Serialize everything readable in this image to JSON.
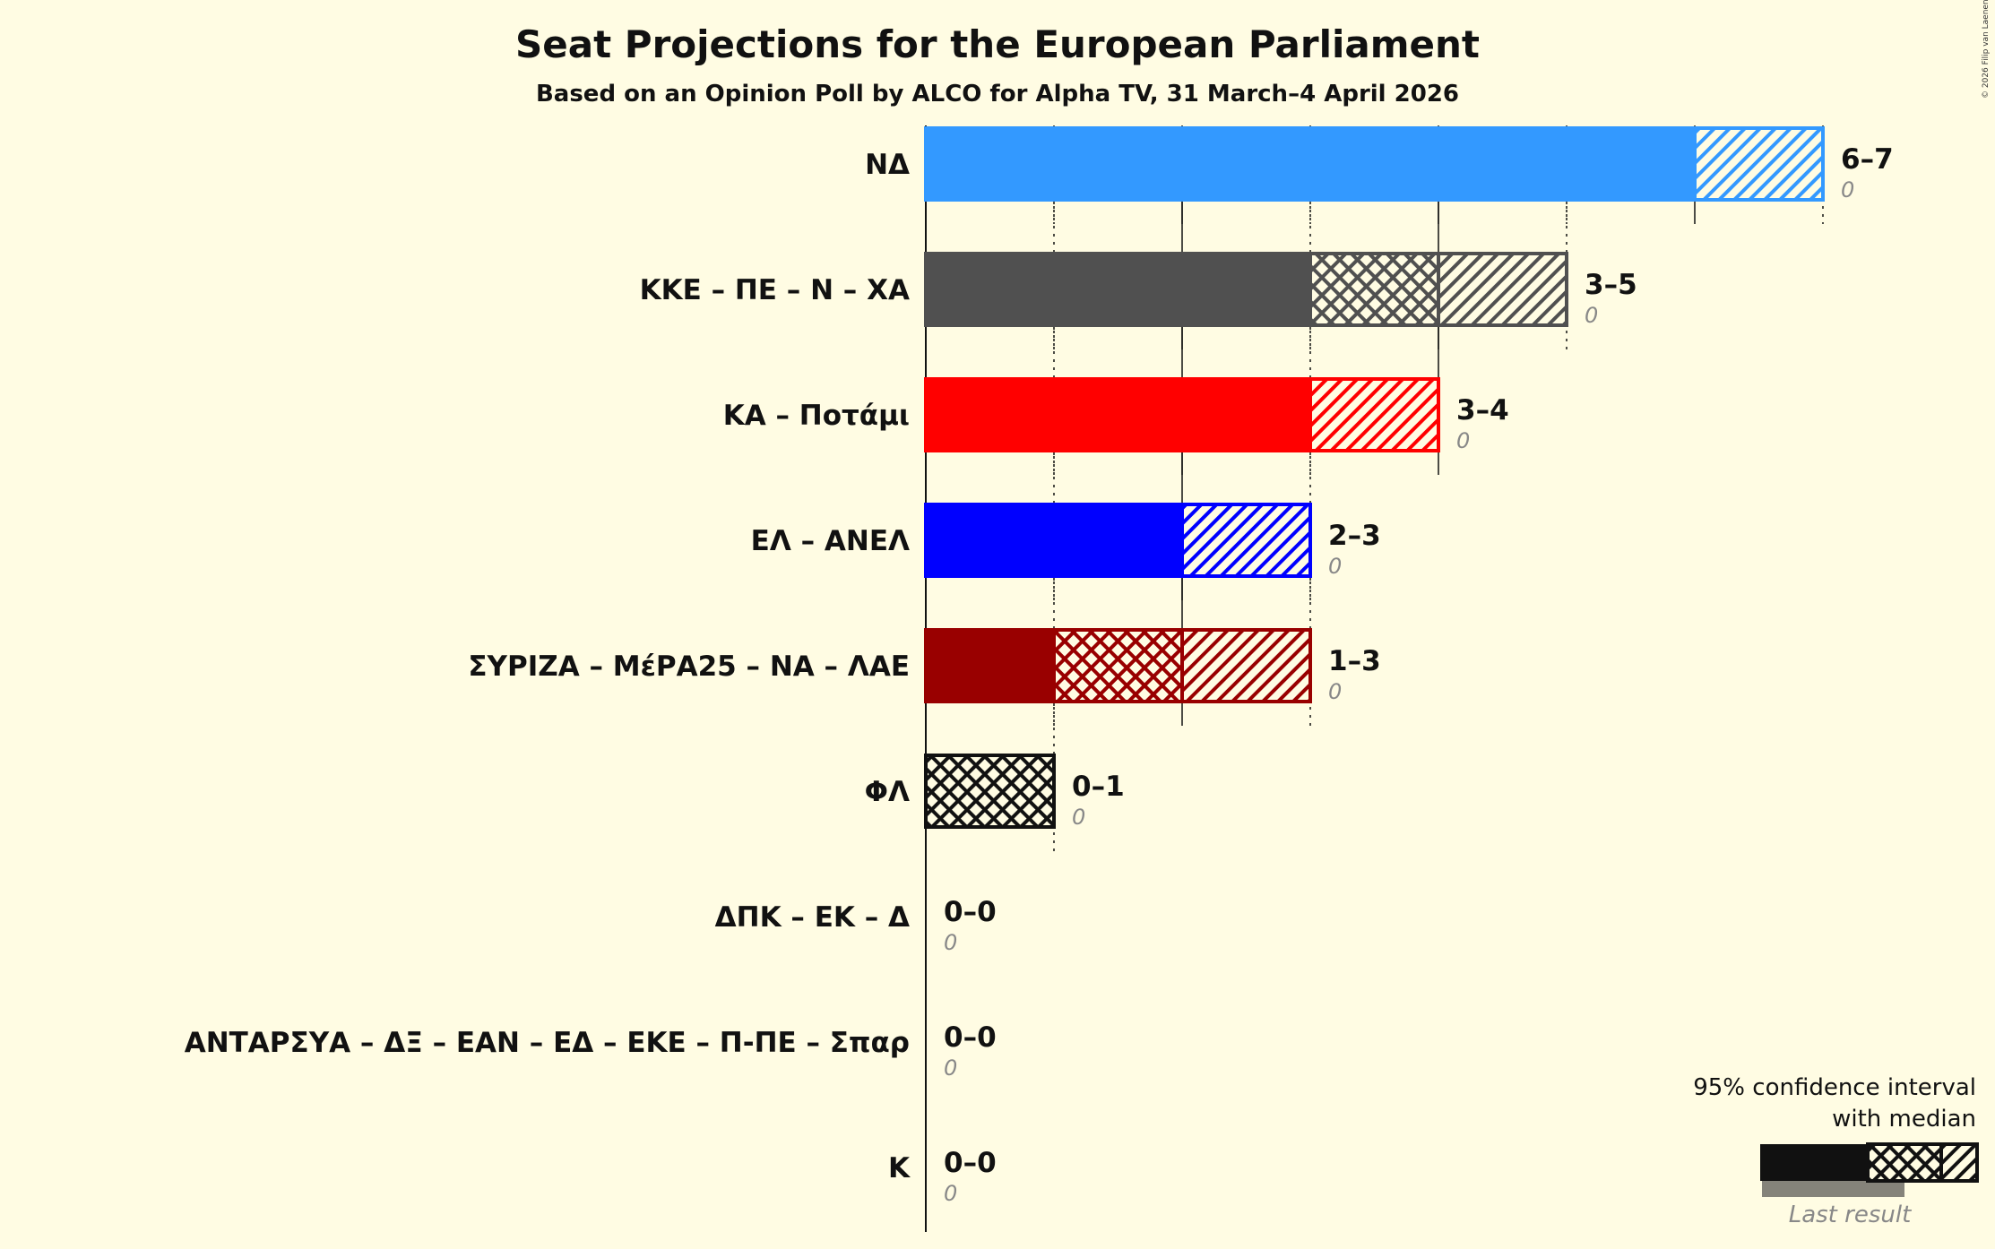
{
  "chart_data": {
    "type": "bar",
    "title": "Seat Projections for the European Parliament",
    "subtitle": "Based on an Opinion Poll by ALCO for Alpha TV, 31 March–4 April 2026",
    "xlabel": "",
    "ylabel": "",
    "xlim": [
      0,
      7
    ],
    "grid": true,
    "categories": [
      "ΝΔ",
      "ΚΚΕ – ΠΕ – Ν – ΧΑ",
      "ΚΑ – Ποτάμι",
      "ΕΛ – ΑΝΕΛ",
      "ΣΥΡΙΖΑ – ΜέΡΑ25 – ΝΑ – ΛΑΕ",
      "ΦΛ",
      "ΔΠΚ – ΕΚ – Δ",
      "ΑΝΤΑΡΣΥΑ – ΔΞ – ΕΑΝ – ΕΔ – ΕΚΕ – Π-ΠΕ – Σπαρ",
      "Κ"
    ],
    "series": [
      {
        "name": "lower",
        "values": [
          6,
          3,
          3,
          2,
          1,
          0,
          0,
          0,
          0
        ]
      },
      {
        "name": "median",
        "values": [
          6,
          4,
          3,
          2,
          2,
          1,
          0,
          0,
          0
        ]
      },
      {
        "name": "upper",
        "values": [
          7,
          5,
          4,
          3,
          3,
          1,
          0,
          0,
          0
        ]
      },
      {
        "name": "last_result",
        "values": [
          0,
          0,
          0,
          0,
          0,
          0,
          0,
          0,
          0
        ]
      }
    ],
    "range_labels": [
      "6–7",
      "3–5",
      "3–4",
      "2–3",
      "1–3",
      "0–1",
      "0–0",
      "0–0",
      "0–0"
    ],
    "last_labels": [
      "0",
      "0",
      "0",
      "0",
      "0",
      "0",
      "0",
      "0",
      "0"
    ],
    "colors": [
      "#3399FF",
      "#505050",
      "#FF0000",
      "#0000FF",
      "#990000",
      "#111111",
      "#111111",
      "#111111",
      "#111111"
    ],
    "legend": {
      "placement": "bottom-right",
      "line1": "95% confidence interval",
      "line2": "with median",
      "last_result": "Last result"
    },
    "copyright": "© 2026 Filip van Laenen"
  }
}
